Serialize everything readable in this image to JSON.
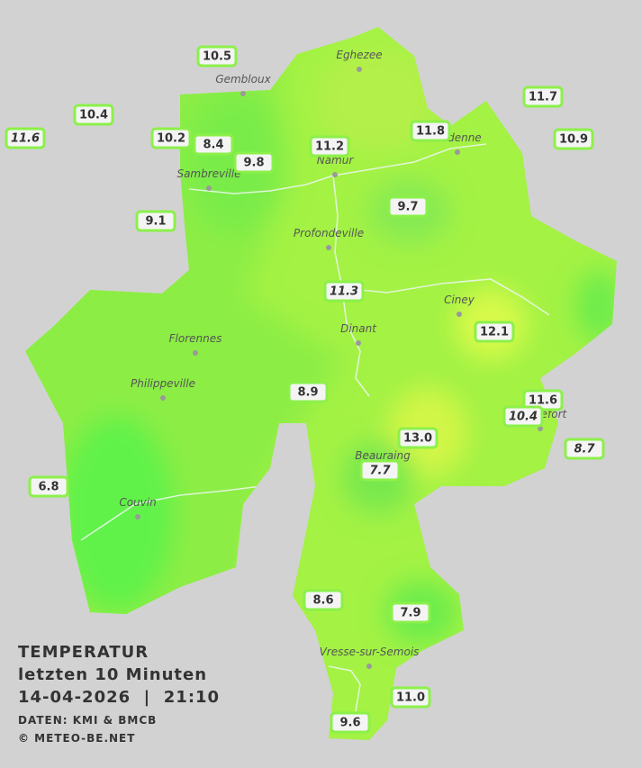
{
  "legend": {
    "title": "TEMPERATUR",
    "period": "letzten 10 Minuten",
    "datetime": "14-04-2026  |  21:10",
    "source": "DATEN: KMI & BMCB",
    "copyright": "© METEO-BE.NET"
  },
  "cities": [
    "Eghezee",
    "Gembloux",
    "Andenne",
    "Namur",
    "Sambreville",
    "Profondeville",
    "Ciney",
    "Dinant",
    "Florennes",
    "Philippeville",
    "Rochefort",
    "Beauraing",
    "Couvin",
    "Vresse-sur-Semois"
  ],
  "stations": [
    "10.5",
    "10.4",
    "11.6",
    "10.2",
    "8.4",
    "9.8",
    "11.2",
    "11.8",
    "11.7",
    "10.9",
    "9.1",
    "9.7",
    "11.3",
    "12.1",
    "8.9",
    "11.6",
    "10.4",
    "13.0",
    "8.7",
    "6.8",
    "7.7",
    "8.6",
    "7.9",
    "11.0",
    "9.6"
  ]
}
